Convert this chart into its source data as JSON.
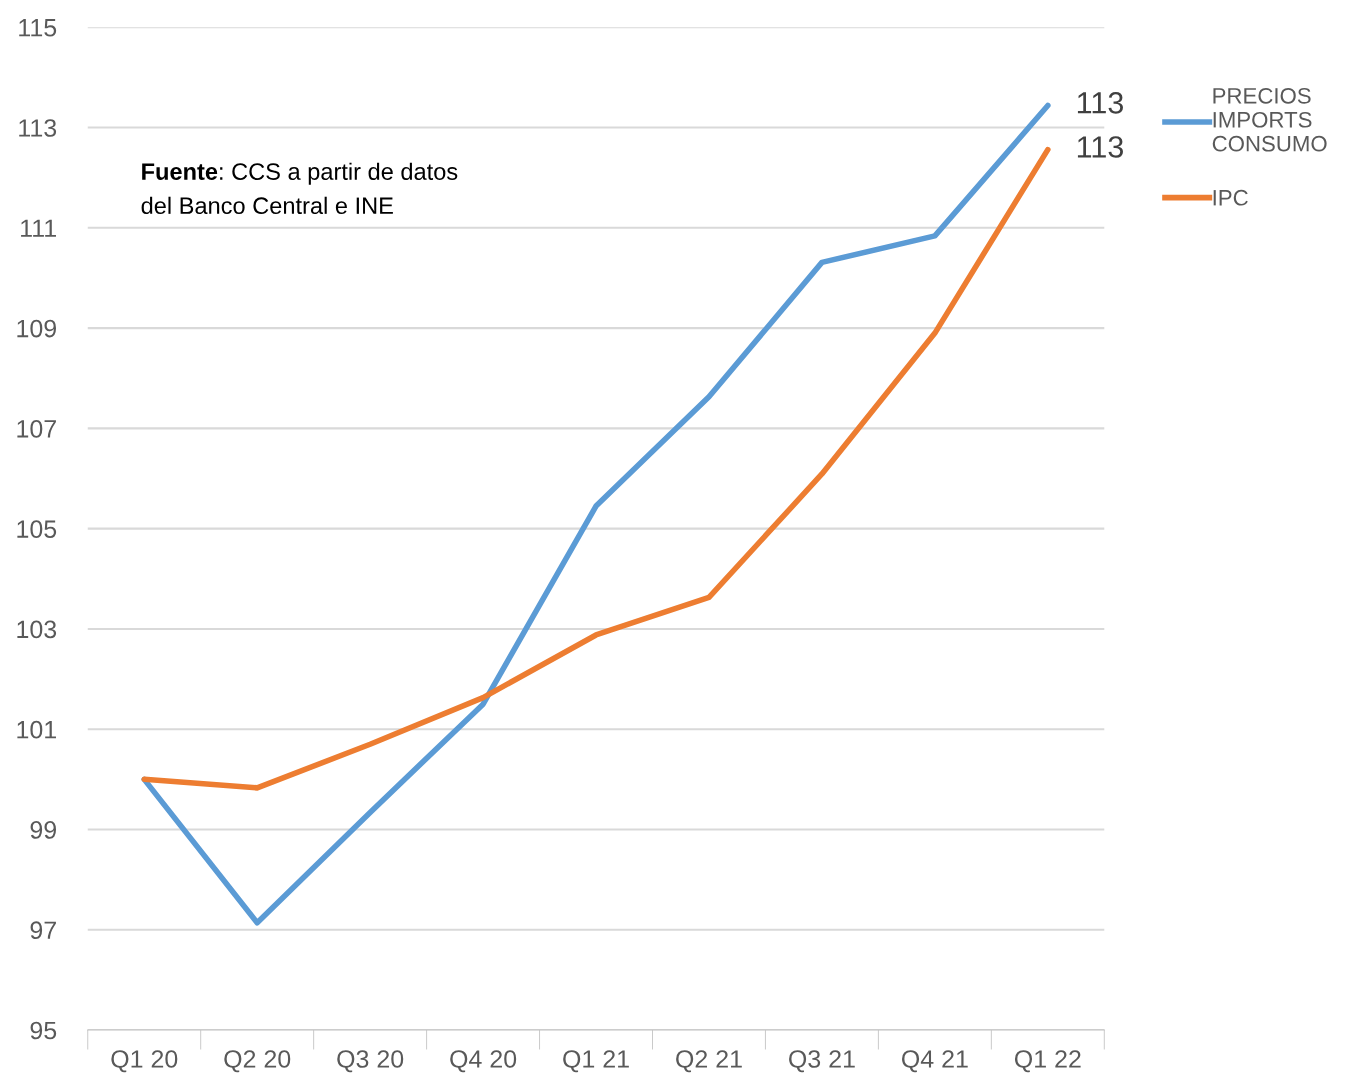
{
  "chart_data": {
    "type": "line",
    "categories": [
      "Q1 20",
      "Q2 20",
      "Q3 20",
      "Q4 20",
      "Q1 21",
      "Q2 21",
      "Q3 21",
      "Q4 21",
      "Q1 22"
    ],
    "series": [
      {
        "name": "PRECIOS\nIMPORTS\nCONSUMO",
        "color": "#5b9bd5",
        "values": [
          100.0,
          97.14,
          99.34,
          101.5,
          105.45,
          107.63,
          110.31,
          110.84,
          113.44
        ],
        "value_labels": [
          null,
          null,
          null,
          null,
          null,
          null,
          null,
          null,
          "113"
        ]
      },
      {
        "name": "IPC",
        "color": "#ed7d31",
        "values": [
          100.0,
          99.83,
          100.7,
          101.63,
          102.88,
          103.63,
          106.09,
          108.9,
          112.56
        ],
        "value_labels": [
          null,
          null,
          null,
          null,
          null,
          null,
          null,
          null,
          "113"
        ]
      }
    ],
    "ylim": [
      95,
      115
    ],
    "yticks": [
      95,
      97,
      99,
      101,
      103,
      105,
      107,
      109,
      111,
      113,
      115
    ],
    "grid": "y",
    "legend": "top right",
    "marker": "none",
    "line_style": "solid",
    "annotations": [
      "Fuente: CCS a partir de datos\ndel Banco Central e INE"
    ]
  }
}
